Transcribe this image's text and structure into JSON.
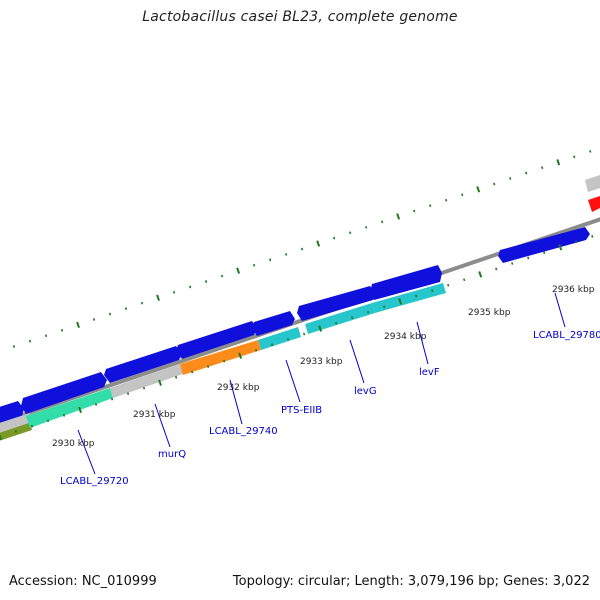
{
  "title": "Lactobacillus casei BL23, complete genome",
  "footer": {
    "accession": "Accession: NC_010999",
    "summary": "Topology: circular; Length: 3,079,196 bp; Genes: 3,022"
  },
  "colors": {
    "backbone": "#8c8c8c",
    "tick": "#1f7a1f",
    "leader": "#0000cc",
    "blue_gene": "#1010dd",
    "gray_gene": "#c4c4c4",
    "cyan_gene": "#26c6cc",
    "orange_gene": "#ff8c1a",
    "green_gene": "#33ddaa",
    "olive_gene": "#7a9a28",
    "red_gene": "#ff1010"
  },
  "kbp_labels": [
    "2930 kbp",
    "2931 kbp",
    "2932 kbp",
    "2933 kbp",
    "2934 kbp",
    "2935 kbp",
    "2936 kbp"
  ],
  "gene_labels": [
    "LCABL_29720",
    "murQ",
    "LCABL_29740",
    "PTS-EIIB",
    "levG",
    "levF",
    "LCABL_29780"
  ]
}
